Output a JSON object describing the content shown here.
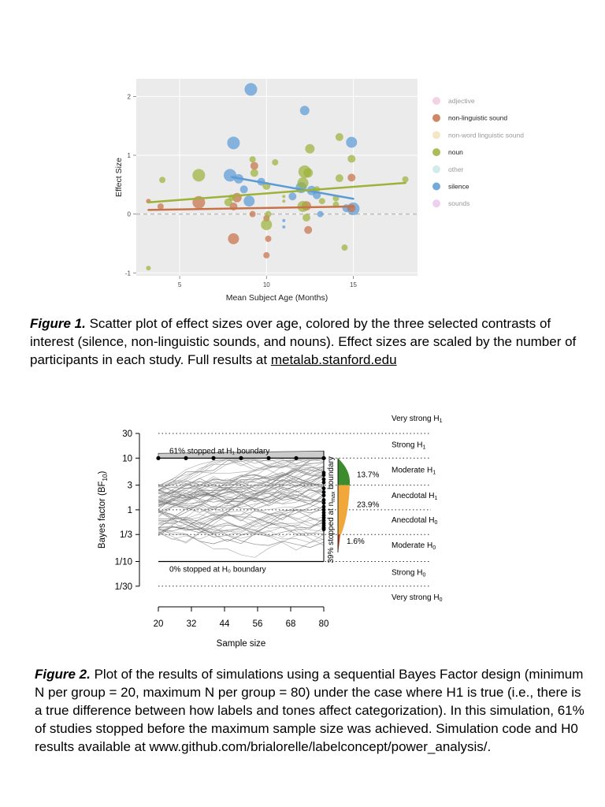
{
  "chart_data": [
    {
      "type": "scatter",
      "xlabel": "Mean Subject Age (Months)",
      "ylabel": "Effect Size",
      "xlim": [
        2.5,
        18.7
      ],
      "ylim": [
        -1.05,
        2.3
      ],
      "xticks": [
        5,
        10,
        15
      ],
      "yticks": [
        -1,
        0,
        1,
        2
      ],
      "grid": true,
      "background": "#ebebeb",
      "zero_line": 0,
      "legend_position": "right",
      "legend": [
        {
          "name": "adjective",
          "color": "#e8a8c8",
          "active": false
        },
        {
          "name": "non-linguistic sound",
          "color": "#c8724a",
          "active": true
        },
        {
          "name": "non-word linguistic sound",
          "color": "#e8cf8a",
          "active": false
        },
        {
          "name": "noun",
          "color": "#9db23a",
          "active": true
        },
        {
          "name": "other",
          "color": "#a8d8d8",
          "active": false
        },
        {
          "name": "silence",
          "color": "#5b9bd5",
          "active": true
        },
        {
          "name": "sounds",
          "color": "#e0a0e0",
          "active": false
        }
      ],
      "series": [
        {
          "name": "silence",
          "color": "#5b9bd5",
          "trend": [
            [
              8,
              0.63
            ],
            [
              15,
              0.26
            ]
          ],
          "points": [
            [
              9.1,
              2.12,
              8
            ],
            [
              12.2,
              1.76,
              6
            ],
            [
              8.1,
              1.21,
              8
            ],
            [
              14.9,
              1.22,
              7
            ],
            [
              7.9,
              0.66,
              8
            ],
            [
              8.4,
              0.6,
              6
            ],
            [
              9.7,
              0.55,
              5
            ],
            [
              12.0,
              0.45,
              7
            ],
            [
              12.6,
              0.4,
              6
            ],
            [
              8.7,
              0.42,
              5
            ],
            [
              11.5,
              0.3,
              5
            ],
            [
              9.0,
              0.22,
              7
            ],
            [
              12.9,
              0.32,
              5
            ],
            [
              14.6,
              0.1,
              5
            ],
            [
              15.0,
              0.09,
              8
            ],
            [
              13.1,
              0.0,
              4
            ],
            [
              11.0,
              -0.11,
              2
            ],
            [
              11.0,
              -0.22,
              2
            ]
          ]
        },
        {
          "name": "non-linguistic sound",
          "color": "#c8724a",
          "trend": [
            [
              3.2,
              0.07
            ],
            [
              15,
              0.13
            ]
          ],
          "points": [
            [
              3.2,
              0.22,
              3
            ],
            [
              3.9,
              0.13,
              4
            ],
            [
              6.1,
              0.2,
              8
            ],
            [
              8.1,
              0.13,
              5
            ],
            [
              8.3,
              0.28,
              6
            ],
            [
              9.3,
              0.82,
              5
            ],
            [
              9.2,
              0.0,
              4
            ],
            [
              10.0,
              -0.07,
              4
            ],
            [
              10.1,
              -0.42,
              4
            ],
            [
              10.0,
              -0.7,
              4
            ],
            [
              12.3,
              0.14,
              6
            ],
            [
              12.4,
              -0.27,
              5
            ],
            [
              14.9,
              0.62,
              5
            ],
            [
              14.9,
              0.1,
              5
            ],
            [
              8.1,
              -0.42,
              7
            ]
          ]
        },
        {
          "name": "noun",
          "color": "#9db23a",
          "trend": [
            [
              3.2,
              0.2
            ],
            [
              18,
              0.53
            ]
          ],
          "points": [
            [
              3.2,
              -0.92,
              3
            ],
            [
              4.0,
              0.58,
              4
            ],
            [
              6.1,
              0.66,
              8
            ],
            [
              7.8,
              0.2,
              5
            ],
            [
              8.0,
              0.28,
              4
            ],
            [
              9.2,
              0.93,
              4
            ],
            [
              9.3,
              0.7,
              5
            ],
            [
              10.0,
              0.48,
              5
            ],
            [
              10.0,
              -0.18,
              7
            ],
            [
              10.1,
              -0.0,
              4
            ],
            [
              11.0,
              0.22,
              2
            ],
            [
              11.0,
              0.3,
              2
            ],
            [
              12.1,
              0.53,
              7
            ],
            [
              12.2,
              0.72,
              8
            ],
            [
              12.1,
              0.13,
              7
            ],
            [
              12.4,
              0.7,
              6
            ],
            [
              12.3,
              -0.06,
              5
            ],
            [
              12.5,
              1.11,
              6
            ],
            [
              13.2,
              0.22,
              4
            ],
            [
              14.0,
              0.27,
              4
            ],
            [
              14.0,
              0.16,
              4
            ],
            [
              14.2,
              0.61,
              5
            ],
            [
              14.2,
              1.31,
              5
            ],
            [
              14.9,
              0.94,
              5
            ],
            [
              14.5,
              -0.57,
              4
            ],
            [
              18.0,
              0.59,
              4
            ],
            [
              10.5,
              0.88,
              4
            ],
            [
              12.9,
              0.42,
              4
            ]
          ]
        }
      ]
    },
    {
      "type": "line",
      "xlabel": "Sample size",
      "ylabel": "Bayes factor (BF10)",
      "xticks": [
        20,
        32,
        44,
        56,
        68,
        80
      ],
      "yticks": [
        "30",
        "10",
        "3",
        "1",
        "1/3",
        "1/10",
        "1/30"
      ],
      "log_scale_y": true,
      "grid": false,
      "x_range": [
        20,
        80
      ],
      "y_range_log_bf": [
        0.1,
        10
      ],
      "upper_boundary_label": "61% stopped at H₁ boundary",
      "lower_boundary_label": "0% stopped at H₀ boundary",
      "nmax_label": "39% stopped at n",
      "nmax_sub": "max",
      "nmax_suffix": " boundary",
      "upper_stops_x": [
        20,
        30,
        40,
        50,
        60,
        70,
        80
      ],
      "categories": [
        {
          "label": "Very strong H",
          "sub": "1"
        },
        {
          "label": "Strong H",
          "sub": "1"
        },
        {
          "label": "Moderate H",
          "sub": "1"
        },
        {
          "label": "Anecdotal H",
          "sub": "1"
        },
        {
          "label": "Anecdotal H",
          "sub": "0"
        },
        {
          "label": "Moderate H",
          "sub": "0"
        },
        {
          "label": "Strong H",
          "sub": "0"
        },
        {
          "label": "Very strong H",
          "sub": "0"
        }
      ],
      "final_distribution": [
        {
          "range": "3 to 10",
          "percent": "13.7%",
          "color": "#3c8c2e"
        },
        {
          "range": "1/3 to 3",
          "percent": "23.9%",
          "color": "#f0a83a"
        },
        {
          "range": "1/10 to 1/3",
          "percent": "1.6%",
          "color": "#c8441e"
        }
      ],
      "nmax_points_bf": [
        5.2,
        4.7,
        3.9,
        3.4,
        2.6,
        2.2,
        1.9,
        1.55,
        1.35,
        1.15,
        1.0,
        0.88,
        0.78,
        0.7,
        0.62,
        0.55,
        0.5,
        0.45,
        0.42
      ]
    }
  ],
  "captions": {
    "fig1_label": "Figure 1.",
    "fig1_text": " Scatter plot of effect sizes over age, colored by the three selected contrasts of interest (silence, non-linguistic sounds, and nouns). Effect sizes are scaled by the number of participants in each study. Full results at ",
    "fig1_link": "metalab.stanford.edu",
    "fig2_label": "Figure 2.",
    "fig2_text": " Plot of the results of simulations using a sequential Bayes Factor design (minimum N per group = 20, maximum N per group = 80) under the case where H1 is true (i.e., there is a true difference between how labels and tones affect categorization). In this simulation, 61% of studies stopped before the maximum sample size was achieved. Simulation code and H0 results available at www.github.com/brialorelle/labelconcept/power_analysis/."
  }
}
